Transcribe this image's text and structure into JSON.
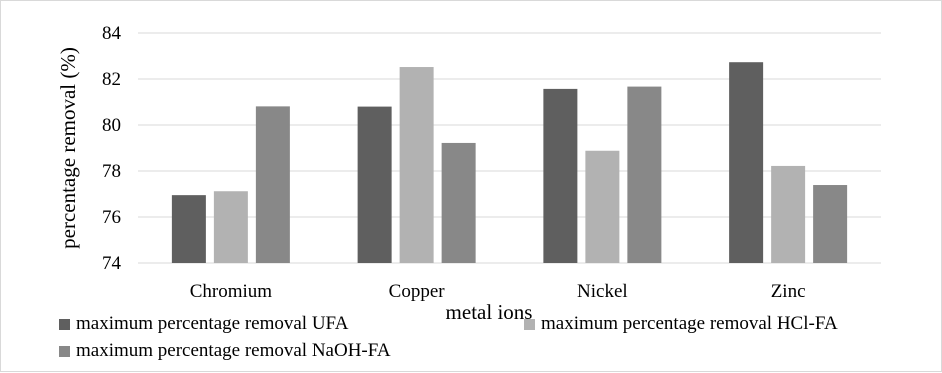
{
  "chart_data": {
    "type": "bar",
    "title": "",
    "xlabel": "metal ions",
    "ylabel": "percentage removal (%)",
    "ylim": [
      74,
      84
    ],
    "yticks": [
      "74",
      "76",
      "78",
      "80",
      "82",
      "84"
    ],
    "grid": true,
    "legend_position": "bottom",
    "categories": [
      "Chromium",
      "Copper",
      "Nickel",
      "Zinc"
    ],
    "series": [
      {
        "name": "maximum percentage removal UFA",
        "color": "#5f5f5f",
        "values": [
          76.95,
          80.8,
          81.57,
          82.73
        ]
      },
      {
        "name": "maximum percentage removal HCl-FA",
        "color": "#b2b2b2",
        "values": [
          77.12,
          82.52,
          78.88,
          78.22
        ]
      },
      {
        "name": "maximum percentage removal NaOH-FA",
        "color": "#888888",
        "values": [
          80.81,
          79.22,
          81.67,
          77.39
        ]
      }
    ]
  }
}
